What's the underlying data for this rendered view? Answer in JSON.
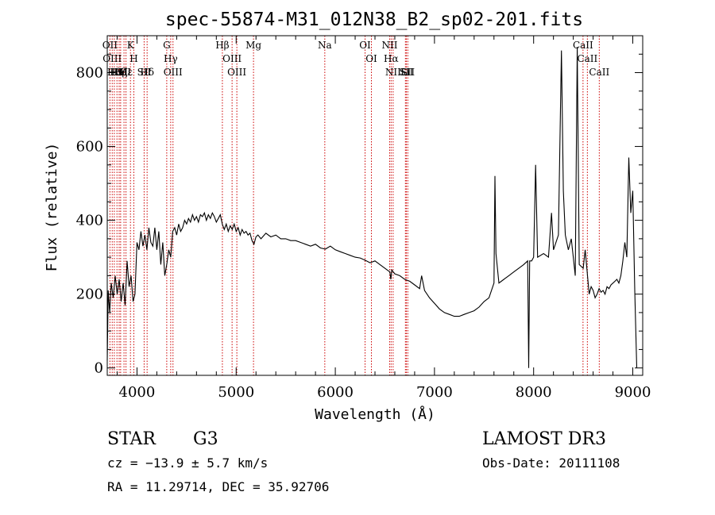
{
  "figure": {
    "title": "spec-55874-M31_012N38_B2_sp02-201.fits",
    "object_class": "STAR",
    "subclass": "G3",
    "survey": "LAMOST DR3",
    "redshift_text": "cz = −13.9 ± 5.7 km/s",
    "obs_date_text": "Obs-Date: 20111108",
    "coords_text": "RA =  11.29714, DEC =  35.92706"
  },
  "chart_data": {
    "type": "line",
    "xlabel": "Wavelength (Å)",
    "ylabel": "Flux (relative)",
    "xlim": [
      3700,
      9100
    ],
    "ylim": [
      -20,
      900
    ],
    "xticks": [
      4000,
      5000,
      6000,
      7000,
      8000,
      9000
    ],
    "yticks": [
      0,
      200,
      400,
      600,
      800
    ],
    "line_color": "#000000",
    "marker_color": "#cc0000",
    "series": [
      {
        "values": [
          [
            3700,
            20
          ],
          [
            3710,
            210
          ],
          [
            3725,
            150
          ],
          [
            3740,
            230
          ],
          [
            3760,
            190
          ],
          [
            3780,
            250
          ],
          [
            3800,
            200
          ],
          [
            3820,
            240
          ],
          [
            3840,
            180
          ],
          [
            3860,
            230
          ],
          [
            3880,
            170
          ],
          [
            3900,
            290
          ],
          [
            3920,
            220
          ],
          [
            3940,
            250
          ],
          [
            3960,
            180
          ],
          [
            3980,
            200
          ],
          [
            4000,
            340
          ],
          [
            4020,
            320
          ],
          [
            4040,
            370
          ],
          [
            4060,
            330
          ],
          [
            4080,
            360
          ],
          [
            4100,
            320
          ],
          [
            4120,
            380
          ],
          [
            4140,
            340
          ],
          [
            4160,
            330
          ],
          [
            4180,
            380
          ],
          [
            4200,
            320
          ],
          [
            4220,
            370
          ],
          [
            4240,
            280
          ],
          [
            4260,
            340
          ],
          [
            4280,
            250
          ],
          [
            4300,
            280
          ],
          [
            4320,
            320
          ],
          [
            4340,
            300
          ],
          [
            4360,
            370
          ],
          [
            4380,
            380
          ],
          [
            4400,
            360
          ],
          [
            4420,
            390
          ],
          [
            4440,
            370
          ],
          [
            4460,
            380
          ],
          [
            4480,
            400
          ],
          [
            4500,
            390
          ],
          [
            4520,
            405
          ],
          [
            4540,
            395
          ],
          [
            4560,
            415
          ],
          [
            4580,
            400
          ],
          [
            4600,
            410
          ],
          [
            4620,
            395
          ],
          [
            4640,
            415
          ],
          [
            4660,
            410
          ],
          [
            4680,
            420
          ],
          [
            4700,
            400
          ],
          [
            4720,
            415
          ],
          [
            4740,
            405
          ],
          [
            4760,
            420
          ],
          [
            4780,
            410
          ],
          [
            4800,
            395
          ],
          [
            4820,
            405
          ],
          [
            4840,
            415
          ],
          [
            4860,
            390
          ],
          [
            4880,
            375
          ],
          [
            4900,
            390
          ],
          [
            4920,
            370
          ],
          [
            4940,
            385
          ],
          [
            4960,
            375
          ],
          [
            4980,
            390
          ],
          [
            5000,
            370
          ],
          [
            5020,
            380
          ],
          [
            5040,
            360
          ],
          [
            5060,
            375
          ],
          [
            5080,
            365
          ],
          [
            5100,
            370
          ],
          [
            5120,
            360
          ],
          [
            5140,
            365
          ],
          [
            5160,
            345
          ],
          [
            5180,
            335
          ],
          [
            5200,
            355
          ],
          [
            5220,
            360
          ],
          [
            5250,
            350
          ],
          [
            5300,
            365
          ],
          [
            5350,
            355
          ],
          [
            5400,
            360
          ],
          [
            5450,
            350
          ],
          [
            5500,
            350
          ],
          [
            5550,
            345
          ],
          [
            5600,
            345
          ],
          [
            5650,
            340
          ],
          [
            5700,
            335
          ],
          [
            5750,
            330
          ],
          [
            5800,
            335
          ],
          [
            5850,
            325
          ],
          [
            5900,
            322
          ],
          [
            5950,
            330
          ],
          [
            6000,
            320
          ],
          [
            6050,
            315
          ],
          [
            6100,
            310
          ],
          [
            6150,
            305
          ],
          [
            6200,
            300
          ],
          [
            6250,
            298
          ],
          [
            6300,
            292
          ],
          [
            6350,
            285
          ],
          [
            6400,
            290
          ],
          [
            6450,
            280
          ],
          [
            6500,
            270
          ],
          [
            6550,
            260
          ],
          [
            6560,
            240
          ],
          [
            6570,
            265
          ],
          [
            6600,
            255
          ],
          [
            6650,
            250
          ],
          [
            6700,
            240
          ],
          [
            6750,
            235
          ],
          [
            6800,
            225
          ],
          [
            6850,
            215
          ],
          [
            6870,
            250
          ],
          [
            6900,
            210
          ],
          [
            6950,
            190
          ],
          [
            7000,
            175
          ],
          [
            7050,
            160
          ],
          [
            7100,
            150
          ],
          [
            7150,
            145
          ],
          [
            7200,
            140
          ],
          [
            7250,
            140
          ],
          [
            7300,
            145
          ],
          [
            7350,
            150
          ],
          [
            7400,
            155
          ],
          [
            7450,
            165
          ],
          [
            7500,
            180
          ],
          [
            7550,
            190
          ],
          [
            7600,
            230
          ],
          [
            7610,
            520
          ],
          [
            7620,
            310
          ],
          [
            7650,
            230
          ],
          [
            7700,
            240
          ],
          [
            7750,
            250
          ],
          [
            7800,
            260
          ],
          [
            7850,
            270
          ],
          [
            7900,
            280
          ],
          [
            7940,
            290
          ],
          [
            7950,
            0
          ],
          [
            7960,
            290
          ],
          [
            7980,
            290
          ],
          [
            8000,
            300
          ],
          [
            8020,
            550
          ],
          [
            8040,
            300
          ],
          [
            8100,
            310
          ],
          [
            8150,
            300
          ],
          [
            8180,
            420
          ],
          [
            8200,
            320
          ],
          [
            8250,
            360
          ],
          [
            8280,
            860
          ],
          [
            8300,
            480
          ],
          [
            8320,
            360
          ],
          [
            8350,
            320
          ],
          [
            8380,
            350
          ],
          [
            8400,
            300
          ],
          [
            8420,
            250
          ],
          [
            8440,
            870
          ],
          [
            8460,
            280
          ],
          [
            8500,
            270
          ],
          [
            8520,
            320
          ],
          [
            8540,
            260
          ],
          [
            8560,
            200
          ],
          [
            8580,
            220
          ],
          [
            8600,
            210
          ],
          [
            8620,
            190
          ],
          [
            8640,
            200
          ],
          [
            8660,
            215
          ],
          [
            8680,
            205
          ],
          [
            8700,
            210
          ],
          [
            8720,
            200
          ],
          [
            8740,
            220
          ],
          [
            8760,
            215
          ],
          [
            8780,
            225
          ],
          [
            8800,
            230
          ],
          [
            8820,
            235
          ],
          [
            8840,
            240
          ],
          [
            8860,
            230
          ],
          [
            8880,
            250
          ],
          [
            8900,
            290
          ],
          [
            8920,
            340
          ],
          [
            8940,
            300
          ],
          [
            8960,
            570
          ],
          [
            8980,
            420
          ],
          [
            9000,
            480
          ],
          [
            9020,
            210
          ],
          [
            9040,
            0
          ]
        ]
      }
    ],
    "lines": [
      {
        "wl": 3727,
        "label": "OII"
      },
      {
        "wl": 3750,
        "label": "OIII"
      },
      {
        "wl": 3771,
        "label": "Hθ"
      },
      {
        "wl": 3798,
        "label": "Hη"
      },
      {
        "wl": 3820,
        "label": "HeI"
      },
      {
        "wl": 3835,
        "label": "Hζ"
      },
      {
        "wl": 3869,
        "label": "SII"
      },
      {
        "wl": 3889,
        "label": "Hε"
      },
      {
        "wl": 3934,
        "label": "K"
      },
      {
        "wl": 3968,
        "label": "H"
      },
      {
        "wl": 4072,
        "label": "SII"
      },
      {
        "wl": 4102,
        "label": "Hδ"
      },
      {
        "wl": 4300,
        "label": "G"
      },
      {
        "wl": 4340,
        "label": "Hγ"
      },
      {
        "wl": 4363,
        "label": "OIII"
      },
      {
        "wl": 4861,
        "label": "Hβ"
      },
      {
        "wl": 4959,
        "label": "OIII"
      },
      {
        "wl": 5007,
        "label": "OIII"
      },
      {
        "wl": 5175,
        "label": "Mg"
      },
      {
        "wl": 5894,
        "label": "Na"
      },
      {
        "wl": 6300,
        "label": "OI"
      },
      {
        "wl": 6364,
        "label": "OI"
      },
      {
        "wl": 6548,
        "label": "NII"
      },
      {
        "wl": 6563,
        "label": "Hα"
      },
      {
        "wl": 6583,
        "label": "NII"
      },
      {
        "wl": 6707,
        "label": "Li"
      },
      {
        "wl": 6716,
        "label": "SII"
      },
      {
        "wl": 6731,
        "label": "SII"
      },
      {
        "wl": 8498,
        "label": "CaII"
      },
      {
        "wl": 8542,
        "label": "CaII"
      },
      {
        "wl": 8662,
        "label": "CaII"
      }
    ]
  }
}
